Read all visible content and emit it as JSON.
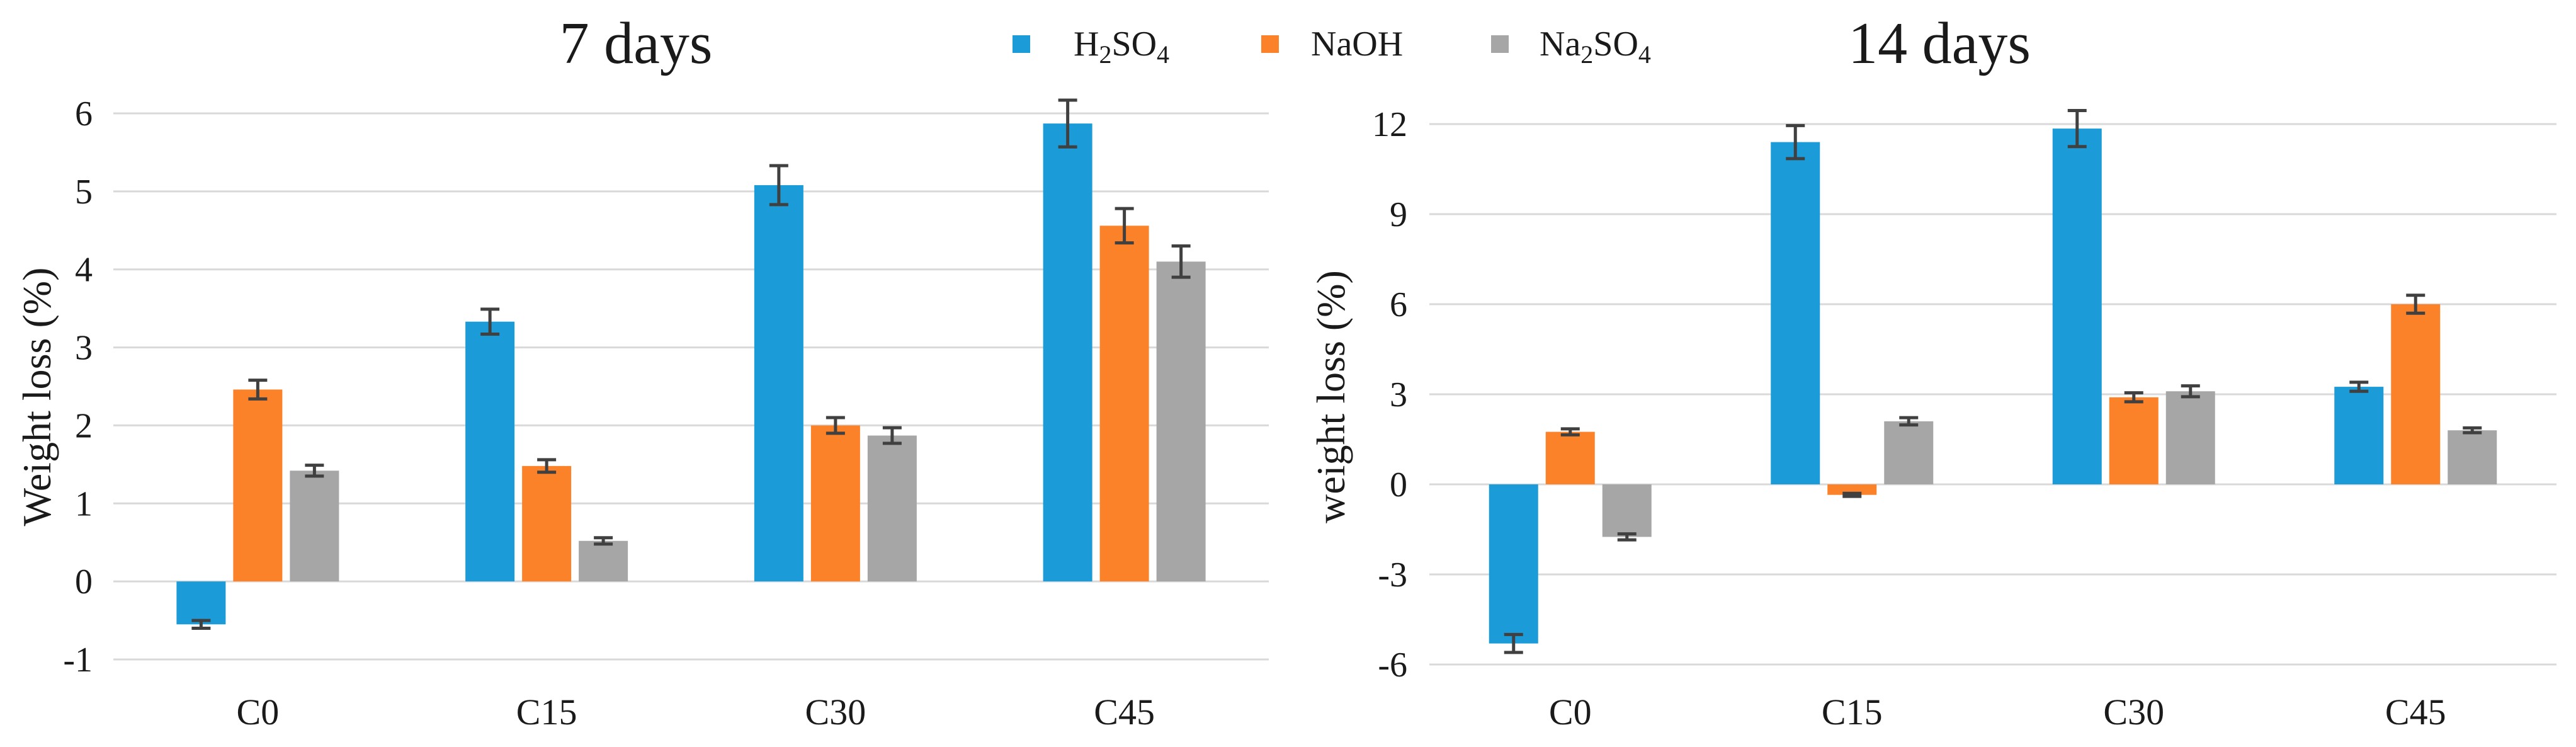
{
  "legend": {
    "series": [
      {
        "key": "h2so4",
        "main": "H",
        "sub1": "2",
        "main2": "SO",
        "sub2": "4",
        "color": "#1b9cd8"
      },
      {
        "key": "naoh",
        "main": "NaOH",
        "sub1": "",
        "main2": "",
        "sub2": "",
        "color": "#fb8228"
      },
      {
        "key": "na2so4",
        "main": "Na",
        "sub1": "2",
        "main2": "SO",
        "sub2": "4",
        "color": "#a6a6a6"
      }
    ]
  },
  "chart_data": [
    {
      "type": "bar",
      "title": "7 days",
      "ylabel": "Weight loss (%)",
      "xlabel": "",
      "categories": [
        "C0",
        "C15",
        "C30",
        "C45"
      ],
      "ylim": [
        -1,
        6
      ],
      "yticks": [
        -1,
        0,
        1,
        2,
        3,
        4,
        5,
        6
      ],
      "grid": true,
      "series": [
        {
          "name": "H2SO4",
          "color": "#1b9cd8",
          "values": [
            -0.55,
            3.33,
            5.08,
            5.87
          ],
          "errors": [
            0.05,
            0.16,
            0.25,
            0.3
          ]
        },
        {
          "name": "NaOH",
          "color": "#fb8228",
          "values": [
            2.46,
            1.48,
            2.0,
            4.56
          ],
          "errors": [
            0.12,
            0.08,
            0.1,
            0.22
          ]
        },
        {
          "name": "Na2SO4",
          "color": "#a6a6a6",
          "values": [
            1.42,
            0.52,
            1.87,
            4.1
          ],
          "errors": [
            0.07,
            0.04,
            0.1,
            0.2
          ]
        }
      ]
    },
    {
      "type": "bar",
      "title": "14 days",
      "ylabel": "weight loss (%)",
      "xlabel": "",
      "categories": [
        "C0",
        "C15",
        "C30",
        "C45"
      ],
      "ylim": [
        -6,
        12
      ],
      "yticks": [
        -6,
        -3,
        0,
        3,
        6,
        9,
        12
      ],
      "grid": true,
      "series": [
        {
          "name": "H2SO4",
          "color": "#1b9cd8",
          "values": [
            -5.3,
            11.4,
            11.85,
            3.25
          ],
          "errors": [
            0.3,
            0.55,
            0.6,
            0.15
          ]
        },
        {
          "name": "NaOH",
          "color": "#fb8228",
          "values": [
            1.75,
            -0.35,
            2.9,
            6.0
          ],
          "errors": [
            0.1,
            0.05,
            0.15,
            0.3
          ]
        },
        {
          "name": "Na2SO4",
          "color": "#a6a6a6",
          "values": [
            -1.75,
            2.1,
            3.1,
            1.8
          ],
          "errors": [
            0.1,
            0.12,
            0.18,
            0.08
          ]
        }
      ]
    }
  ]
}
